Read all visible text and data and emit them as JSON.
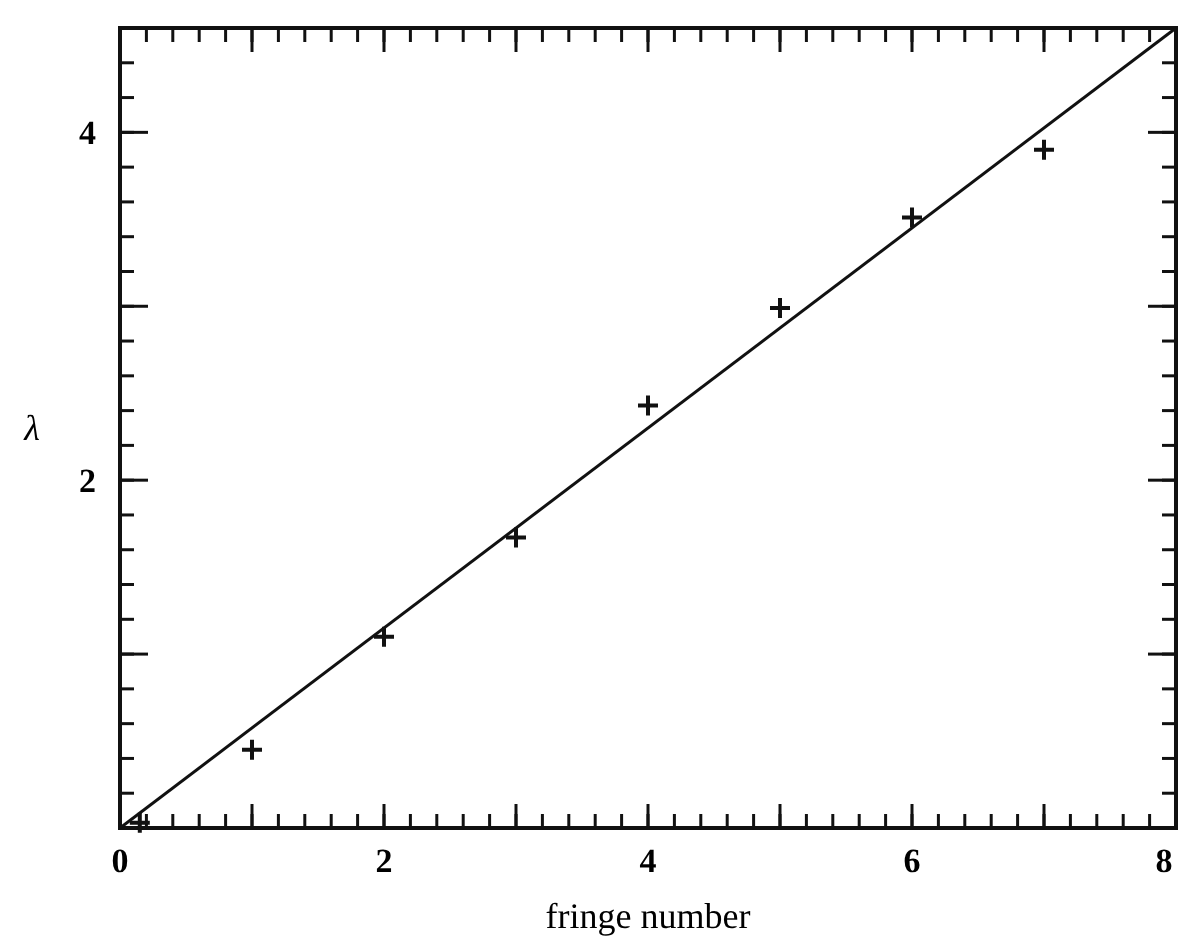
{
  "chart_data": {
    "type": "scatter",
    "xlabel": "fringe number",
    "ylabel": "λ",
    "xlim": [
      0,
      8
    ],
    "ylim": [
      0,
      4.6
    ],
    "xticks": [
      0,
      {
        "value": 1,
        "label": null
      },
      2,
      {
        "value": 3,
        "label": null
      },
      4,
      {
        "value": 5,
        "label": null
      },
      6,
      {
        "value": 7,
        "label": null
      },
      8
    ],
    "yticks": [
      {
        "value": 1,
        "label": null
      },
      2,
      {
        "value": 3,
        "label": null
      },
      4
    ],
    "marker": "cross",
    "grid": false,
    "series": [
      {
        "color": "#111111",
        "x": [
          0.15,
          1,
          2,
          3,
          4,
          5,
          6,
          7
        ],
        "values": [
          0.03,
          0.45,
          1.1,
          1.67,
          2.43,
          2.99,
          3.51,
          3.9
        ]
      },
      {
        "type": "line",
        "color": "#111111",
        "x": [
          0,
          8
        ],
        "values": [
          0,
          4.6
        ],
        "marker": "none",
        "line_style": "solid"
      }
    ]
  }
}
